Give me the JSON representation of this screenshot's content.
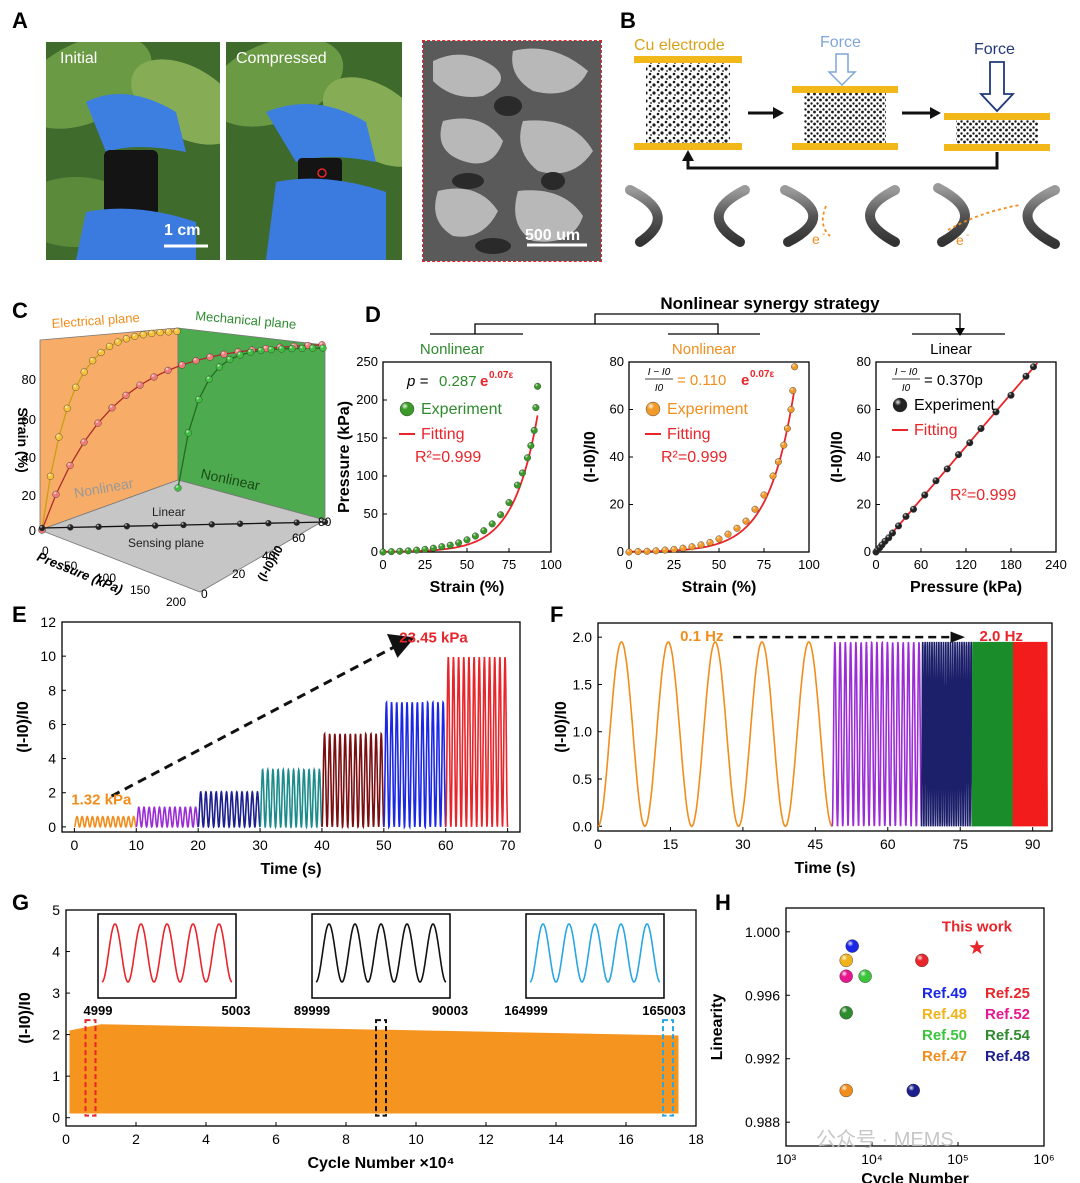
{
  "panels": {
    "A": "A",
    "B": "B",
    "C": "C",
    "D": "D",
    "E": "E",
    "F": "F",
    "G": "G",
    "H": "H"
  },
  "panel_a": {
    "initial": "Initial",
    "compressed": "Compressed",
    "scale1": "1 cm",
    "scale2": "500 um"
  },
  "panel_b": {
    "cu": "Cu electrode",
    "force1": "Force",
    "force2": "Force",
    "e1": "e",
    "e2": "e",
    "minus": "-"
  },
  "colors": {
    "orange": "#f18d1c",
    "green": "#2e8b2e",
    "red": "#e8252a",
    "black": "#111111",
    "gold": "#f0b31a",
    "navy": "#1f2f7a"
  },
  "chart_data": [
    {
      "id": "C",
      "type": "scatter",
      "title": "",
      "labels": {
        "electrical": "Electrical plane",
        "mechanical": "Mechanical plane",
        "sensing": "Sensing plane",
        "linear": "Linear",
        "nonlinear1": "Nonlinear",
        "nonlinear2": "Nonlinear"
      },
      "axes": {
        "strain": {
          "label": "Strain (%)",
          "ticks": [
            "0",
            "20",
            "40",
            "60",
            "80"
          ]
        },
        "pressure": {
          "label": "Pressure (kPa)",
          "ticks": [
            "0",
            "50",
            "100",
            "150",
            "200"
          ]
        },
        "current": {
          "label": "(I-I0)/I0",
          "ticks": [
            "0",
            "20",
            "40",
            "60",
            "80"
          ]
        }
      }
    },
    {
      "id": "D",
      "type": "scatter",
      "header": "Nonlinear synergy strategy",
      "subplots": [
        {
          "header": "Nonlinear",
          "xlabel": "Strain (%)",
          "ylabel": "Pressure (kPa)",
          "xlim": [
            0,
            100
          ],
          "ylim": [
            0,
            250
          ],
          "xticks": [
            0,
            25,
            50,
            75,
            100
          ],
          "yticks": [
            0,
            50,
            100,
            150,
            200,
            250
          ],
          "eq_left": "p =",
          "eq_coef": "0.287",
          "eq_exp": "e",
          "eq_sup": "0.07ε",
          "legend_exp": "Experiment",
          "legend_fit": "Fitting",
          "r2": "R²=0.999",
          "x": [
            0,
            5,
            10,
            15,
            20,
            25,
            30,
            35,
            40,
            45,
            50,
            55,
            60,
            65,
            70,
            75,
            80,
            83,
            86,
            88,
            90,
            91,
            92
          ],
          "y": [
            0,
            0.5,
            1,
            1.5,
            2.5,
            3.5,
            5,
            7,
            9,
            12,
            16,
            21,
            28,
            37,
            49,
            65,
            88,
            104,
            124,
            140,
            160,
            190,
            218
          ],
          "fit": {
            "a": 0.287,
            "b": 0.07
          }
        },
        {
          "header": "Nonlinear",
          "xlabel": "Strain (%)",
          "ylabel": "(I-I0)/I0",
          "xlim": [
            0,
            100
          ],
          "ylim": [
            0,
            80
          ],
          "xticks": [
            0,
            25,
            50,
            75,
            100
          ],
          "yticks": [
            0,
            20,
            40,
            60,
            80
          ],
          "eq_frac_top": "I − I0",
          "eq_frac_bot": "I0",
          "eq_coef": "= 0.110",
          "eq_exp": "e",
          "eq_sup": "0.07ε",
          "legend_exp": "Experiment",
          "legend_fit": "Fitting",
          "r2": "R²=0.999",
          "x": [
            0,
            5,
            10,
            15,
            20,
            25,
            30,
            35,
            40,
            45,
            50,
            55,
            60,
            65,
            70,
            75,
            80,
            83,
            86,
            88,
            90,
            91,
            92
          ],
          "y": [
            0,
            0.2,
            0.3,
            0.5,
            0.8,
            1.1,
            1.6,
            2.2,
            3,
            4,
            5.5,
            7.5,
            10,
            13,
            18,
            24,
            32,
            38,
            45,
            52,
            60,
            68,
            78
          ],
          "fit": {
            "a": 0.11,
            "b": 0.07
          }
        },
        {
          "header": "Linear",
          "xlabel": "Pressure (kPa)",
          "ylabel": "(I-I0)/I0",
          "xlim": [
            0,
            240
          ],
          "ylim": [
            0,
            80
          ],
          "xticks": [
            0,
            60,
            120,
            180,
            240
          ],
          "yticks": [
            0,
            20,
            40,
            60,
            80
          ],
          "eq_frac_top": "I − I0",
          "eq_frac_bot": "I0",
          "eq_coef": "= 0.370p",
          "legend_exp": "Experiment",
          "legend_fit": "Fitting",
          "r2": "R²=0.999",
          "x": [
            0,
            2,
            5,
            8,
            12,
            17,
            22,
            30,
            40,
            50,
            65,
            80,
            95,
            110,
            125,
            140,
            160,
            180,
            200,
            210
          ],
          "y": [
            0,
            0.8,
            1.8,
            3,
            4.5,
            6,
            8,
            11,
            15,
            18,
            24,
            30,
            35,
            41,
            46,
            52,
            59,
            66,
            74,
            78
          ],
          "fit": {
            "slope": 0.37
          }
        }
      ]
    },
    {
      "id": "E",
      "type": "line",
      "xlabel": "Time (s)",
      "ylabel": "(I-I0)/I0",
      "xlim": [
        0,
        72
      ],
      "ylim": [
        -0.3,
        12
      ],
      "xticks": [
        0,
        10,
        20,
        30,
        40,
        50,
        60,
        70
      ],
      "yticks": [
        0,
        2,
        4,
        6,
        8,
        10,
        12
      ],
      "annot_low": "1.32 kPa",
      "annot_high": "23.45 kPa",
      "segments": [
        {
          "t0": 0,
          "t1": 10,
          "amp": 0.6,
          "cycles": 12,
          "color": "#f18d1c"
        },
        {
          "t0": 10,
          "t1": 20,
          "amp": 1.15,
          "cycles": 12,
          "color": "#9b2cd6"
        },
        {
          "t0": 20,
          "t1": 30,
          "amp": 2.05,
          "cycles": 12,
          "color": "#1c1f8c"
        },
        {
          "t0": 30,
          "t1": 40,
          "amp": 3.35,
          "cycles": 12,
          "color": "#1c8b8b"
        },
        {
          "t0": 40,
          "t1": 50,
          "amp": 5.45,
          "cycles": 12,
          "color": "#7a0f12"
        },
        {
          "t0": 50,
          "t1": 60,
          "amp": 7.3,
          "cycles": 12,
          "color": "#1b27e6"
        },
        {
          "t0": 60,
          "t1": 70,
          "amp": 9.95,
          "cycles": 12,
          "color": "#e8252a"
        }
      ]
    },
    {
      "id": "F",
      "type": "line",
      "xlabel": "Time (s)",
      "ylabel": "(I-I0)/I0",
      "xlim": [
        0,
        94
      ],
      "ylim": [
        -0.05,
        2.15
      ],
      "xticks": [
        0,
        15,
        30,
        45,
        60,
        75,
        90
      ],
      "yticks": [
        "0.0",
        "0.5",
        "1.0",
        "1.5",
        "2.0"
      ],
      "annot_low": "0.1 Hz",
      "annot_high": "2.0 Hz",
      "segments": [
        {
          "t0": 0,
          "t1": 48.5,
          "amp": 1.95,
          "cycles": 5,
          "color": "#f18d1c"
        },
        {
          "t0": 48.5,
          "t1": 67,
          "amp": 1.95,
          "cycles": 17,
          "color": "#9b2cd6"
        },
        {
          "t0": 67,
          "t1": 77.5,
          "amp": 1.95,
          "cycles": 22,
          "color": "#1c1f6a"
        },
        {
          "t0": 77.5,
          "t1": 86,
          "amp": 1.95,
          "cycles": 26,
          "color": "#1a8c2a"
        },
        {
          "t0": 86,
          "t1": 93,
          "amp": 1.95,
          "cycles": 30,
          "color": "#f21c1c"
        }
      ]
    },
    {
      "id": "G",
      "type": "area",
      "xlabel": "Cycle Number ×10⁴",
      "ylabel": "(I-I0)/I0",
      "xlim": [
        0,
        18
      ],
      "ylim": [
        -0.2,
        5
      ],
      "xticks": [
        0,
        2,
        4,
        6,
        8,
        10,
        12,
        14,
        16,
        18
      ],
      "yticks": [
        0,
        1,
        2,
        3,
        4,
        5
      ],
      "band": {
        "x0": 0.1,
        "x1": 17.5,
        "low": 0.1,
        "high_start": 2.25,
        "high_end": 1.98
      },
      "insets": [
        {
          "left": "4999",
          "right": "5003",
          "color": "#e8252a"
        },
        {
          "left": "89999",
          "right": "90003",
          "color": "#111111"
        },
        {
          "left": "164999",
          "right": "165003",
          "color": "#2aa6e2"
        }
      ],
      "markers": [
        0.7,
        9.0,
        17.2
      ]
    },
    {
      "id": "H",
      "type": "scatter",
      "xlabel": "Cycle Number",
      "ylabel": "Linearity",
      "xlim_log": [
        3,
        6
      ],
      "ylim": [
        0.9865,
        1.0015
      ],
      "xticks": [
        "10³",
        "10⁴",
        "10⁵",
        "10⁶"
      ],
      "yticks": [
        "0.988",
        "0.992",
        "0.996",
        "1.000"
      ],
      "points": [
        {
          "log": 3.77,
          "y": 0.9991,
          "color": "#1b27e6"
        },
        {
          "log": 3.7,
          "y": 0.9982,
          "color": "#f0b31a"
        },
        {
          "log": 3.7,
          "y": 0.9972,
          "color": "#e6178f"
        },
        {
          "log": 3.92,
          "y": 0.9972,
          "color": "#3dc43d"
        },
        {
          "log": 3.7,
          "y": 0.9949,
          "color": "#2e8b2e"
        },
        {
          "log": 3.7,
          "y": 0.99,
          "color": "#f18d1c"
        },
        {
          "log": 4.48,
          "y": 0.99,
          "color": "#1c1f8c"
        },
        {
          "log": 4.58,
          "y": 0.9982,
          "color": "#e8252a"
        }
      ],
      "star": {
        "log": 5.22,
        "y": 0.999,
        "label": "This work"
      },
      "legend": [
        {
          "text": "Ref.49",
          "color": "#1b27e6"
        },
        {
          "text": "Ref.25",
          "color": "#e8252a"
        },
        {
          "text": "Ref.48",
          "color": "#f0b31a"
        },
        {
          "text": "Ref.52",
          "color": "#e6178f"
        },
        {
          "text": "Ref.50",
          "color": "#3dc43d"
        },
        {
          "text": "Ref.54",
          "color": "#2e8b2e"
        },
        {
          "text": "Ref.47",
          "color": "#f18d1c"
        },
        {
          "text": "Ref.48",
          "color": "#1c1f8c"
        }
      ],
      "watermark": "公众号 · MEMS"
    }
  ]
}
